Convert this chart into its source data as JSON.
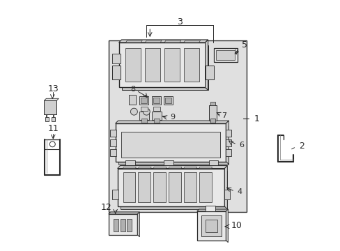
{
  "bg_color": "#ffffff",
  "lc": "#2a2a2a",
  "fc_light": "#e8e8e8",
  "fc_mid": "#d0d0d0",
  "fc_dark": "#b0b0b0",
  "shaded_bg": "#e0e0e0",
  "fig_width": 4.89,
  "fig_height": 3.6,
  "dpi": 100
}
